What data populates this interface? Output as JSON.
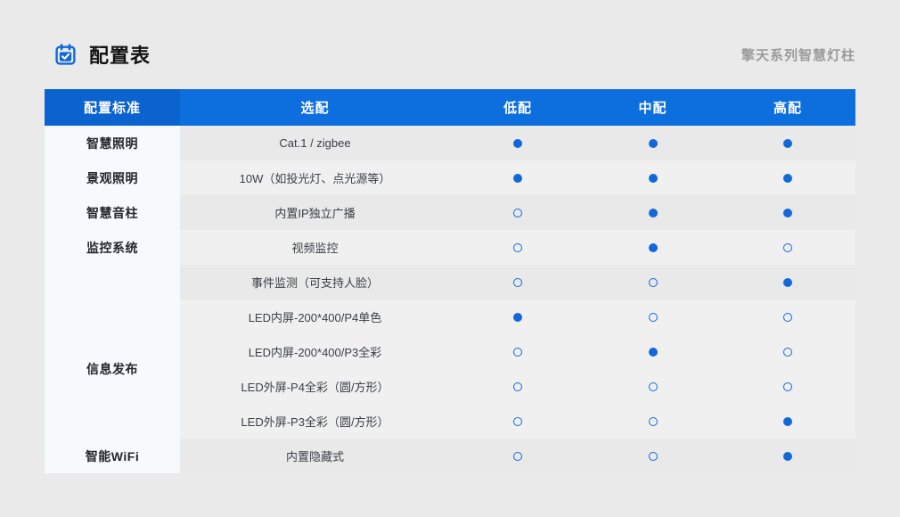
{
  "page": {
    "title": "配置表",
    "subtitle": "擎天系列智慧灯柱"
  },
  "colors": {
    "accent": "#1268d8",
    "header_blue": "#0d6edd",
    "header_blue_dark": "#0b63d0",
    "rail_bg": "#f6fafd",
    "row_dark": "#e9e9ea",
    "row_light": "#f0f0f1",
    "page_bg": "#eaeaeb"
  },
  "icons": {
    "title_icon": "calendar-check-icon"
  },
  "table": {
    "header": [
      "配置标准",
      "选配",
      "低配",
      "中配",
      "高配"
    ],
    "category_rail": [
      {
        "label": "智慧照明",
        "span": 1
      },
      {
        "label": "景观照明",
        "span": 1
      },
      {
        "label": "智慧音柱",
        "span": 1
      },
      {
        "label": "监控系统",
        "span": 1
      },
      {
        "label": "",
        "span": 1
      },
      {
        "label": "信息发布",
        "span": 4
      },
      {
        "label": "智能WiFi",
        "span": 1
      }
    ],
    "rows": [
      {
        "category": "智慧照明",
        "option": "Cat.1 / zigbee",
        "low": "filled",
        "mid": "filled",
        "high": "filled",
        "shade": "dark"
      },
      {
        "category": "景观照明",
        "option": "10W（如投光灯、点光源等）",
        "low": "filled",
        "mid": "filled",
        "high": "filled",
        "shade": "light"
      },
      {
        "category": "智慧音柱",
        "option": "内置IP独立广播",
        "low": "hollow",
        "mid": "filled",
        "high": "filled",
        "shade": "dark"
      },
      {
        "category": "监控系统",
        "option": "视频监控",
        "low": "hollow",
        "mid": "filled",
        "high": "hollow",
        "shade": "light"
      },
      {
        "category": "监控系统",
        "option": "事件监测（可支持人脸）",
        "low": "hollow",
        "mid": "hollow",
        "high": "filled",
        "shade": "dark"
      },
      {
        "category": "信息发布",
        "option": "LED内屏-200*400/P4单色",
        "low": "filled",
        "mid": "hollow",
        "high": "hollow",
        "shade": "light"
      },
      {
        "category": "信息发布",
        "option": "LED内屏-200*400/P3全彩",
        "low": "hollow",
        "mid": "filled",
        "high": "hollow",
        "shade": "light"
      },
      {
        "category": "信息发布",
        "option": "LED外屏-P4全彩（圆/方形）",
        "low": "hollow",
        "mid": "hollow",
        "high": "hollow",
        "shade": "light"
      },
      {
        "category": "信息发布",
        "option": "LED外屏-P3全彩（圆/方形）",
        "low": "hollow",
        "mid": "hollow",
        "high": "filled",
        "shade": "light"
      },
      {
        "category": "智能WiFi",
        "option": "内置隐藏式",
        "low": "hollow",
        "mid": "hollow",
        "high": "filled",
        "shade": "dark"
      }
    ]
  }
}
